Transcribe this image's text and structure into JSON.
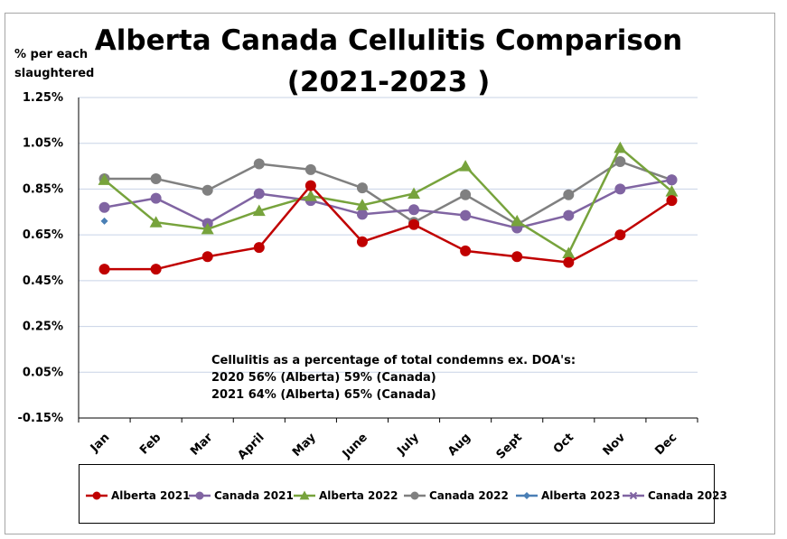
{
  "chart_data": {
    "type": "line",
    "title_lines": [
      "Alberta Canada Cellulitis Comparison",
      "(2021-2023 )"
    ],
    "ylabel_lines": [
      "% per each",
      "slaughtered"
    ],
    "categories": [
      "Jan",
      "Feb",
      "Mar",
      "April",
      "May",
      "June",
      "July",
      "Aug",
      "Sept",
      "Oct",
      "Nov",
      "Dec"
    ],
    "ylim": [
      -0.15,
      1.25
    ],
    "yticks": [
      -0.15,
      0.05,
      0.25,
      0.45,
      0.65,
      0.85,
      1.05,
      1.25
    ],
    "ytick_labels": [
      "-0.15%",
      "0.05%",
      "0.25%",
      "0.45%",
      "0.65%",
      "0.85%",
      "1.05%",
      "1.25%"
    ],
    "grid": true,
    "legend_position": "bottom",
    "series": [
      {
        "name": "Alberta 2021",
        "color": "#c00000",
        "marker": "circle",
        "values": [
          0.5,
          0.5,
          0.555,
          0.595,
          0.865,
          0.62,
          0.695,
          0.58,
          0.555,
          0.53,
          0.65,
          0.8
        ]
      },
      {
        "name": "Canada 2021",
        "color": "#8064a2",
        "marker": "circle",
        "values": [
          0.77,
          0.81,
          0.7,
          0.83,
          0.8,
          0.74,
          0.76,
          0.735,
          0.68,
          0.735,
          0.85,
          0.89
        ]
      },
      {
        "name": "Alberta 2022",
        "color": "#77a33c",
        "marker": "triangle",
        "values": [
          0.89,
          0.705,
          0.675,
          0.755,
          0.82,
          0.78,
          0.83,
          0.95,
          0.71,
          0.57,
          1.03,
          0.84
        ]
      },
      {
        "name": "Canada 2022",
        "color": "#808080",
        "marker": "circle",
        "values": [
          0.895,
          0.895,
          0.845,
          0.96,
          0.935,
          0.855,
          0.705,
          0.825,
          0.695,
          0.825,
          0.97,
          0.89
        ]
      },
      {
        "name": "Alberta 2023",
        "color": "#4a7fb5",
        "marker": "diamond",
        "values": [
          0.71,
          null,
          null,
          null,
          null,
          null,
          null,
          null,
          null,
          null,
          null,
          null
        ]
      },
      {
        "name": "Canada 2023",
        "color": "#8064a2",
        "marker": "x",
        "values": [
          null,
          null,
          null,
          null,
          null,
          null,
          null,
          null,
          null,
          null,
          null,
          null
        ]
      }
    ],
    "annotation_lines": [
      "Cellulitis as a percentage of total condemns ex. DOA's:",
      "2020 56% (Alberta) 59% (Canada)",
      "2021 64% (Alberta) 65% (Canada)"
    ]
  }
}
